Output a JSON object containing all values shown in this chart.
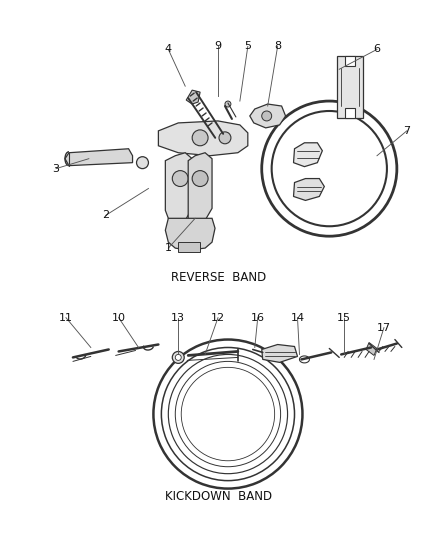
{
  "bg_color": "#ffffff",
  "line_color": "#333333",
  "text_color": "#111111",
  "reverse_band_label": "REVERSE  BAND",
  "kickdown_band_label": "KICKDOWN  BAND",
  "fig_width": 4.38,
  "fig_height": 5.33,
  "dpi": 100,
  "leaders_rev": [
    [
      1,
      168,
      248,
      195,
      218
    ],
    [
      2,
      105,
      215,
      148,
      188
    ],
    [
      3,
      55,
      168,
      88,
      158
    ],
    [
      4,
      168,
      48,
      185,
      85
    ],
    [
      9,
      218,
      45,
      218,
      95
    ],
    [
      5,
      248,
      45,
      240,
      100
    ],
    [
      8,
      278,
      45,
      268,
      105
    ],
    [
      6,
      378,
      48,
      340,
      68
    ],
    [
      7,
      408,
      130,
      378,
      155
    ]
  ],
  "leaders_kick": [
    [
      11,
      65,
      318,
      90,
      348
    ],
    [
      10,
      118,
      318,
      138,
      348
    ],
    [
      13,
      178,
      318,
      178,
      355
    ],
    [
      12,
      218,
      318,
      205,
      355
    ],
    [
      16,
      258,
      318,
      255,
      348
    ],
    [
      14,
      298,
      318,
      300,
      355
    ],
    [
      15,
      345,
      318,
      345,
      355
    ],
    [
      17,
      385,
      328,
      375,
      360
    ]
  ]
}
